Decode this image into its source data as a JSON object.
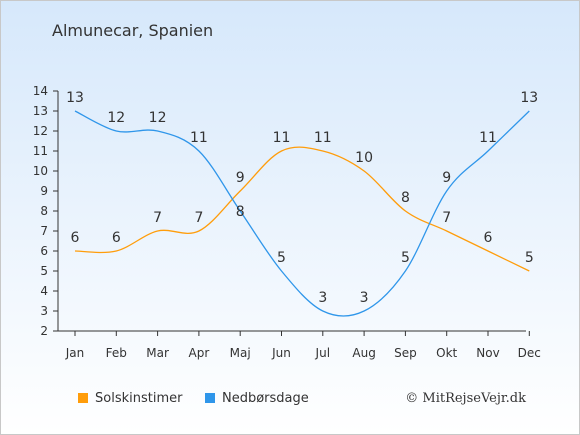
{
  "title": "Almunecar, Spanien",
  "copyright": "© MitRejseVejr.dk",
  "chart_data": {
    "type": "line",
    "categories": [
      "Jan",
      "Feb",
      "Mar",
      "Apr",
      "Maj",
      "Jun",
      "Jul",
      "Aug",
      "Sep",
      "Okt",
      "Nov",
      "Dec"
    ],
    "series": [
      {
        "name": "Solskinstimer",
        "color": "#ff9d0b",
        "values": [
          6,
          6,
          7,
          7,
          9,
          11,
          11,
          10,
          8,
          7,
          6,
          5
        ]
      },
      {
        "name": "Nedbørsdage",
        "color": "#2f96ea",
        "values": [
          13,
          12,
          12,
          11,
          8,
          5,
          3,
          3,
          5,
          9,
          11,
          13
        ]
      }
    ],
    "y_ticks": [
      2,
      3,
      4,
      5,
      6,
      7,
      8,
      9,
      10,
      11,
      12,
      13,
      14
    ],
    "ylim": [
      2,
      14
    ],
    "grid": false,
    "legend_position": "bottom"
  }
}
